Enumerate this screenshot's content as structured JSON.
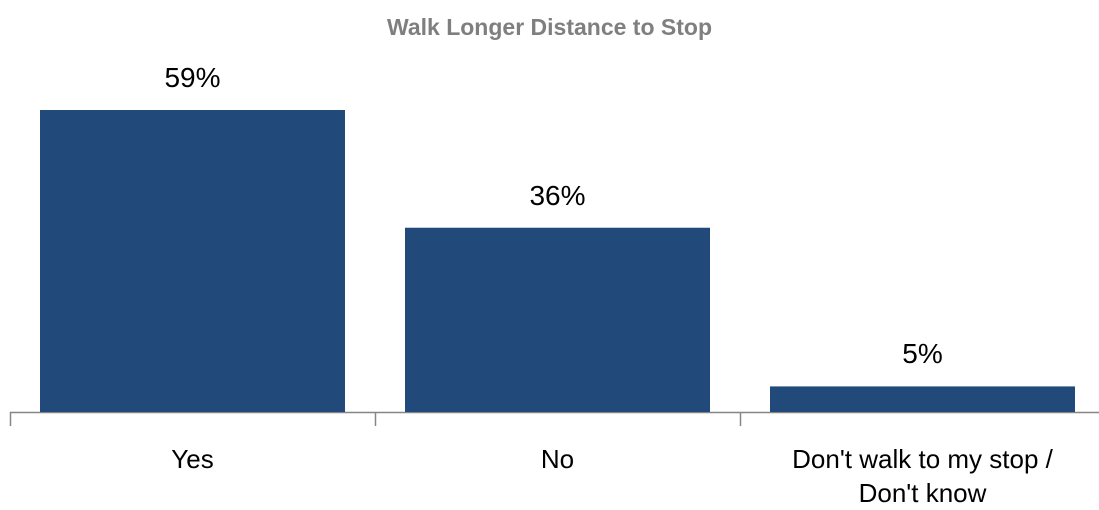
{
  "chart_data": {
    "type": "bar",
    "title": "Walk Longer Distance to Stop",
    "categories": [
      "Yes",
      "No",
      "Don't walk to my stop / Don't know"
    ],
    "values": [
      59,
      36,
      5
    ],
    "value_labels": [
      "59%",
      "36%",
      "5%"
    ],
    "color": "#214a7b"
  }
}
